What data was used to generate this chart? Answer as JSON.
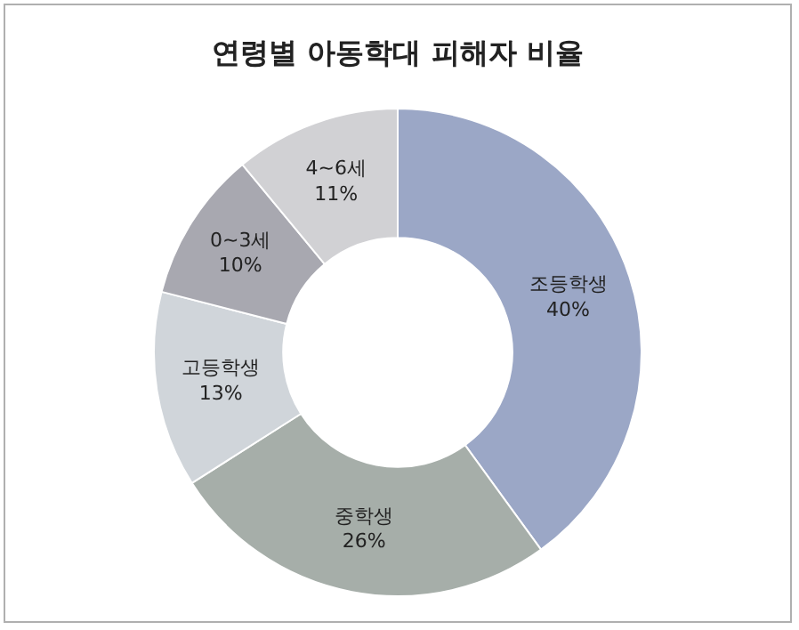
{
  "chart_data": {
    "type": "donut",
    "title": "연령별 아동학대 피해자 비율",
    "categories": [
      "조등학생",
      "중학생",
      "고등학생",
      "0~3세",
      "4~6세"
    ],
    "values": [
      40,
      26,
      13,
      10,
      11
    ],
    "value_labels": [
      "40%",
      "26%",
      "13%",
      "10%",
      "11%"
    ],
    "colors": [
      "#9ba7c6",
      "#a6aea9",
      "#d0d5da",
      "#a8a8b0",
      "#d1d1d4"
    ],
    "legend": false
  }
}
